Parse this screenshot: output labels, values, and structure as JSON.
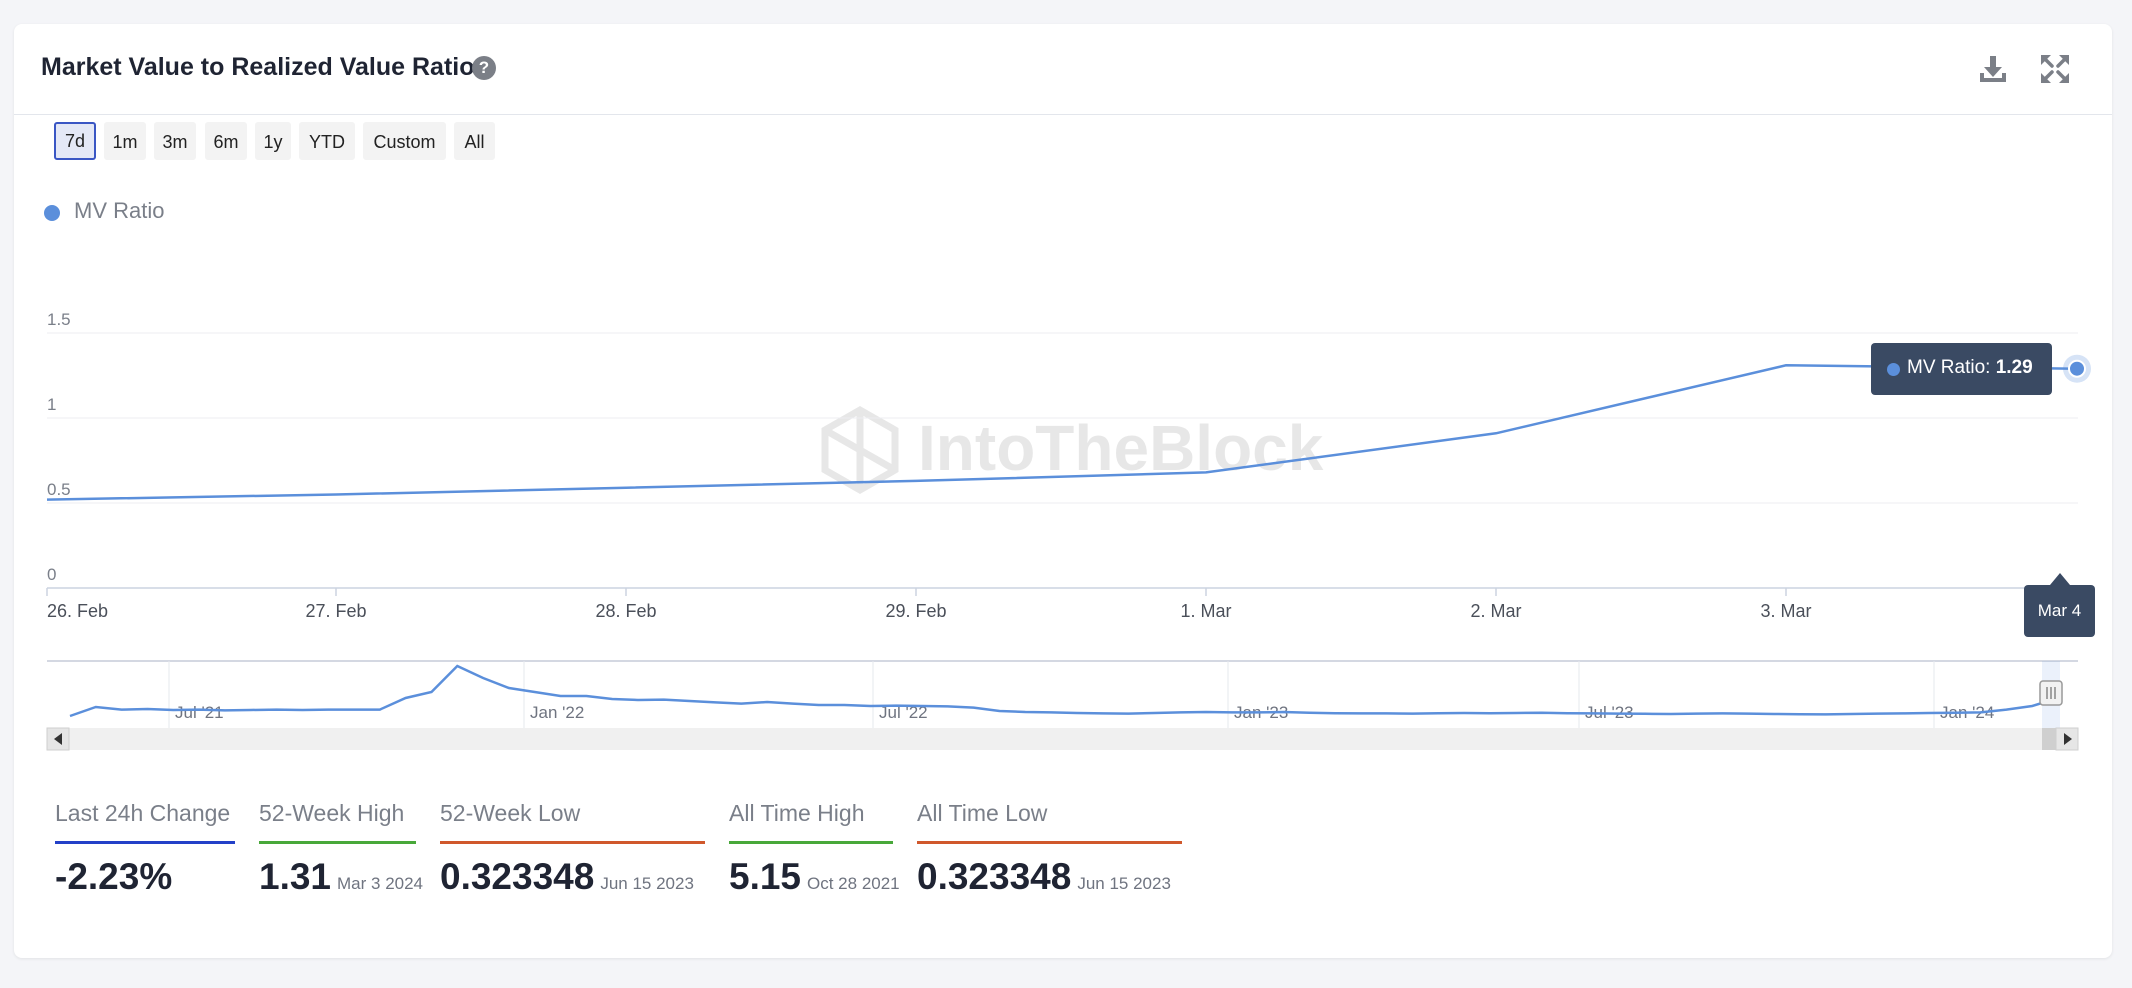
{
  "header": {
    "title": "Market Value to Realized Value Ratio",
    "help_icon": "question-circle-icon",
    "download_icon": "download-icon",
    "expand_icon": "expand-icon"
  },
  "range_buttons": [
    {
      "label": "7d",
      "active": true
    },
    {
      "label": "1m",
      "active": false
    },
    {
      "label": "3m",
      "active": false
    },
    {
      "label": "6m",
      "active": false
    },
    {
      "label": "1y",
      "active": false
    },
    {
      "label": "YTD",
      "active": false
    },
    {
      "label": "Custom",
      "active": false
    },
    {
      "label": "All",
      "active": false
    }
  ],
  "legend": {
    "label": "MV Ratio",
    "color": "#5b8fdb"
  },
  "watermark": "IntoTheBlock",
  "tooltip": {
    "label": "MV Ratio:",
    "value": "1.29"
  },
  "x_flag": "Mar 4",
  "chart_data": {
    "type": "line",
    "series": [
      {
        "name": "MV Ratio",
        "color": "#5b8fdb",
        "x": [
          "26. Feb",
          "27. Feb",
          "28. Feb",
          "29. Feb",
          "1. Mar",
          "2. Mar",
          "3. Mar",
          "Mar 4"
        ],
        "values": [
          0.52,
          0.55,
          0.59,
          0.63,
          0.68,
          0.91,
          1.31,
          1.29
        ]
      }
    ],
    "yticks": [
      "0",
      "0.5",
      "1",
      "1.5"
    ],
    "ylim": [
      0,
      1.5
    ],
    "xticks": [
      "26. Feb",
      "27. Feb",
      "28. Feb",
      "29. Feb",
      "1. Mar",
      "2. Mar",
      "3. Mar"
    ],
    "grid": true,
    "navigator": {
      "ticks": [
        "Jul '21",
        "Jan '22",
        "Jul '22",
        "Jan '23",
        "Jul '23",
        "Jan '24"
      ],
      "values": [
        0.3,
        0.75,
        0.62,
        0.65,
        0.6,
        0.62,
        0.58,
        0.6,
        0.62,
        0.6,
        0.62,
        0.62,
        0.62,
        1.2,
        1.5,
        2.8,
        2.2,
        1.7,
        1.5,
        1.3,
        1.3,
        1.15,
        1.1,
        1.12,
        1.05,
        0.98,
        0.92,
        1.0,
        0.92,
        0.85,
        0.85,
        0.8,
        0.82,
        0.8,
        0.78,
        0.72,
        0.55,
        0.5,
        0.48,
        0.45,
        0.43,
        0.42,
        0.45,
        0.48,
        0.5,
        0.48,
        0.48,
        0.5,
        0.46,
        0.44,
        0.43,
        0.43,
        0.42,
        0.44,
        0.45,
        0.44,
        0.45,
        0.46,
        0.44,
        0.43,
        0.42,
        0.41,
        0.4,
        0.42,
        0.43,
        0.42,
        0.4,
        0.39,
        0.38,
        0.4,
        0.42,
        0.43,
        0.45,
        0.46,
        0.48,
        0.62,
        0.8,
        1.2
      ],
      "selected_range": "Mar 4"
    }
  },
  "stats": [
    {
      "label": "Last 24h Change",
      "value": "-2.23%",
      "date": "",
      "color": "#2340c8"
    },
    {
      "label": "52-Week High",
      "value": "1.31",
      "date": "Mar 3 2024",
      "color": "#48a83a"
    },
    {
      "label": "52-Week Low",
      "value": "0.323348",
      "date": "Jun 15 2023",
      "color": "#d0582c"
    },
    {
      "label": "All Time High",
      "value": "5.15",
      "date": "Oct 28 2021",
      "color": "#48a83a"
    },
    {
      "label": "All Time Low",
      "value": "0.323348",
      "date": "Jun 15 2023",
      "color": "#d0582c"
    }
  ]
}
